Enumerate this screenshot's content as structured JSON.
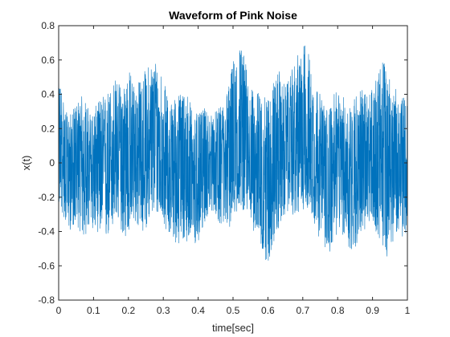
{
  "chart_data": {
    "type": "line",
    "title": "Waveform of Pink Noise",
    "xlabel": "time[sec]",
    "ylabel": "x(t)",
    "xlim": [
      0,
      1
    ],
    "ylim": [
      -0.8,
      0.8
    ],
    "x_ticks": [
      0,
      0.1,
      0.2,
      0.3,
      0.4,
      0.5,
      0.6,
      0.7,
      0.8,
      0.9,
      1
    ],
    "x_tick_labels": [
      "0",
      "0.1",
      "0.2",
      "0.3",
      "0.4",
      "0.5",
      "0.6",
      "0.7",
      "0.8",
      "0.9",
      "1"
    ],
    "y_ticks": [
      -0.8,
      -0.6,
      -0.4,
      -0.2,
      0,
      0.2,
      0.4,
      0.6,
      0.8
    ],
    "y_tick_labels": [
      "-0.8",
      "-0.6",
      "-0.4",
      "-0.2",
      "0",
      "0.2",
      "0.4",
      "0.6",
      "0.8"
    ],
    "grid": false,
    "series_color": "#0072BD",
    "series": [
      {
        "x": [
          0,
          0.01,
          0.02,
          0.03,
          0.04,
          0.05,
          0.06,
          0.07,
          0.08,
          0.09,
          0.1,
          0.11,
          0.12,
          0.13,
          0.14,
          0.15,
          0.16,
          0.17,
          0.18,
          0.19,
          0.2,
          0.21,
          0.22,
          0.23,
          0.24,
          0.25,
          0.26,
          0.27,
          0.28,
          0.29,
          0.3,
          0.31,
          0.32,
          0.33,
          0.34,
          0.35,
          0.36,
          0.37,
          0.38,
          0.39,
          0.4,
          0.41,
          0.42,
          0.43,
          0.44,
          0.45,
          0.46,
          0.47,
          0.48,
          0.49,
          0.5,
          0.51,
          0.52,
          0.53,
          0.54,
          0.55,
          0.56,
          0.57,
          0.58,
          0.59,
          0.6,
          0.61,
          0.62,
          0.63,
          0.64,
          0.65,
          0.66,
          0.67,
          0.68,
          0.69,
          0.7,
          0.71,
          0.72,
          0.73,
          0.74,
          0.75,
          0.76,
          0.77,
          0.78,
          0.79,
          0.8,
          0.81,
          0.82,
          0.83,
          0.84,
          0.85,
          0.86,
          0.87,
          0.88,
          0.89,
          0.9,
          0.91,
          0.92,
          0.93,
          0.94,
          0.95,
          0.96,
          0.97,
          0.98,
          0.99,
          1
        ],
        "y_max": [
          0.5,
          0.45,
          0.3,
          0.28,
          0.3,
          0.35,
          0.38,
          0.4,
          0.35,
          0.3,
          0.3,
          0.35,
          0.38,
          0.4,
          0.42,
          0.45,
          0.5,
          0.48,
          0.45,
          0.5,
          0.55,
          0.52,
          0.45,
          0.48,
          0.52,
          0.55,
          0.58,
          0.6,
          0.62,
          0.58,
          0.5,
          0.4,
          0.35,
          0.38,
          0.4,
          0.42,
          0.45,
          0.4,
          0.35,
          0.3,
          0.28,
          0.3,
          0.32,
          0.3,
          0.28,
          0.3,
          0.32,
          0.35,
          0.4,
          0.5,
          0.6,
          0.65,
          0.7,
          0.65,
          0.55,
          0.45,
          0.4,
          0.42,
          0.4,
          0.38,
          0.4,
          0.45,
          0.5,
          0.55,
          0.5,
          0.45,
          0.48,
          0.55,
          0.6,
          0.65,
          0.68,
          0.72,
          0.62,
          0.5,
          0.45,
          0.4,
          0.35,
          0.32,
          0.35,
          0.4,
          0.42,
          0.4,
          0.38,
          0.35,
          0.38,
          0.4,
          0.42,
          0.45,
          0.4,
          0.42,
          0.45,
          0.48,
          0.55,
          0.62,
          0.55,
          0.5,
          0.45,
          0.42,
          0.4,
          0.38,
          0.35
        ],
        "y_min": [
          -0.25,
          -0.3,
          -0.35,
          -0.4,
          -0.38,
          -0.35,
          -0.4,
          -0.45,
          -0.42,
          -0.4,
          -0.38,
          -0.4,
          -0.42,
          -0.5,
          -0.45,
          -0.4,
          -0.38,
          -0.35,
          -0.4,
          -0.45,
          -0.42,
          -0.38,
          -0.35,
          -0.4,
          -0.42,
          -0.38,
          -0.35,
          -0.3,
          -0.32,
          -0.3,
          -0.35,
          -0.4,
          -0.42,
          -0.45,
          -0.48,
          -0.5,
          -0.48,
          -0.45,
          -0.5,
          -0.52,
          -0.48,
          -0.4,
          -0.35,
          -0.3,
          -0.28,
          -0.3,
          -0.35,
          -0.38,
          -0.4,
          -0.38,
          -0.35,
          -0.3,
          -0.25,
          -0.28,
          -0.3,
          -0.35,
          -0.4,
          -0.45,
          -0.5,
          -0.55,
          -0.6,
          -0.52,
          -0.45,
          -0.4,
          -0.35,
          -0.3,
          -0.28,
          -0.3,
          -0.32,
          -0.3,
          -0.28,
          -0.25,
          -0.3,
          -0.35,
          -0.4,
          -0.45,
          -0.55,
          -0.6,
          -0.5,
          -0.45,
          -0.42,
          -0.4,
          -0.45,
          -0.5,
          -0.55,
          -0.5,
          -0.45,
          -0.42,
          -0.4,
          -0.38,
          -0.35,
          -0.4,
          -0.45,
          -0.5,
          -0.55,
          -0.5,
          -0.45,
          -0.4,
          -0.42,
          -0.45,
          -0.4
        ]
      }
    ]
  }
}
